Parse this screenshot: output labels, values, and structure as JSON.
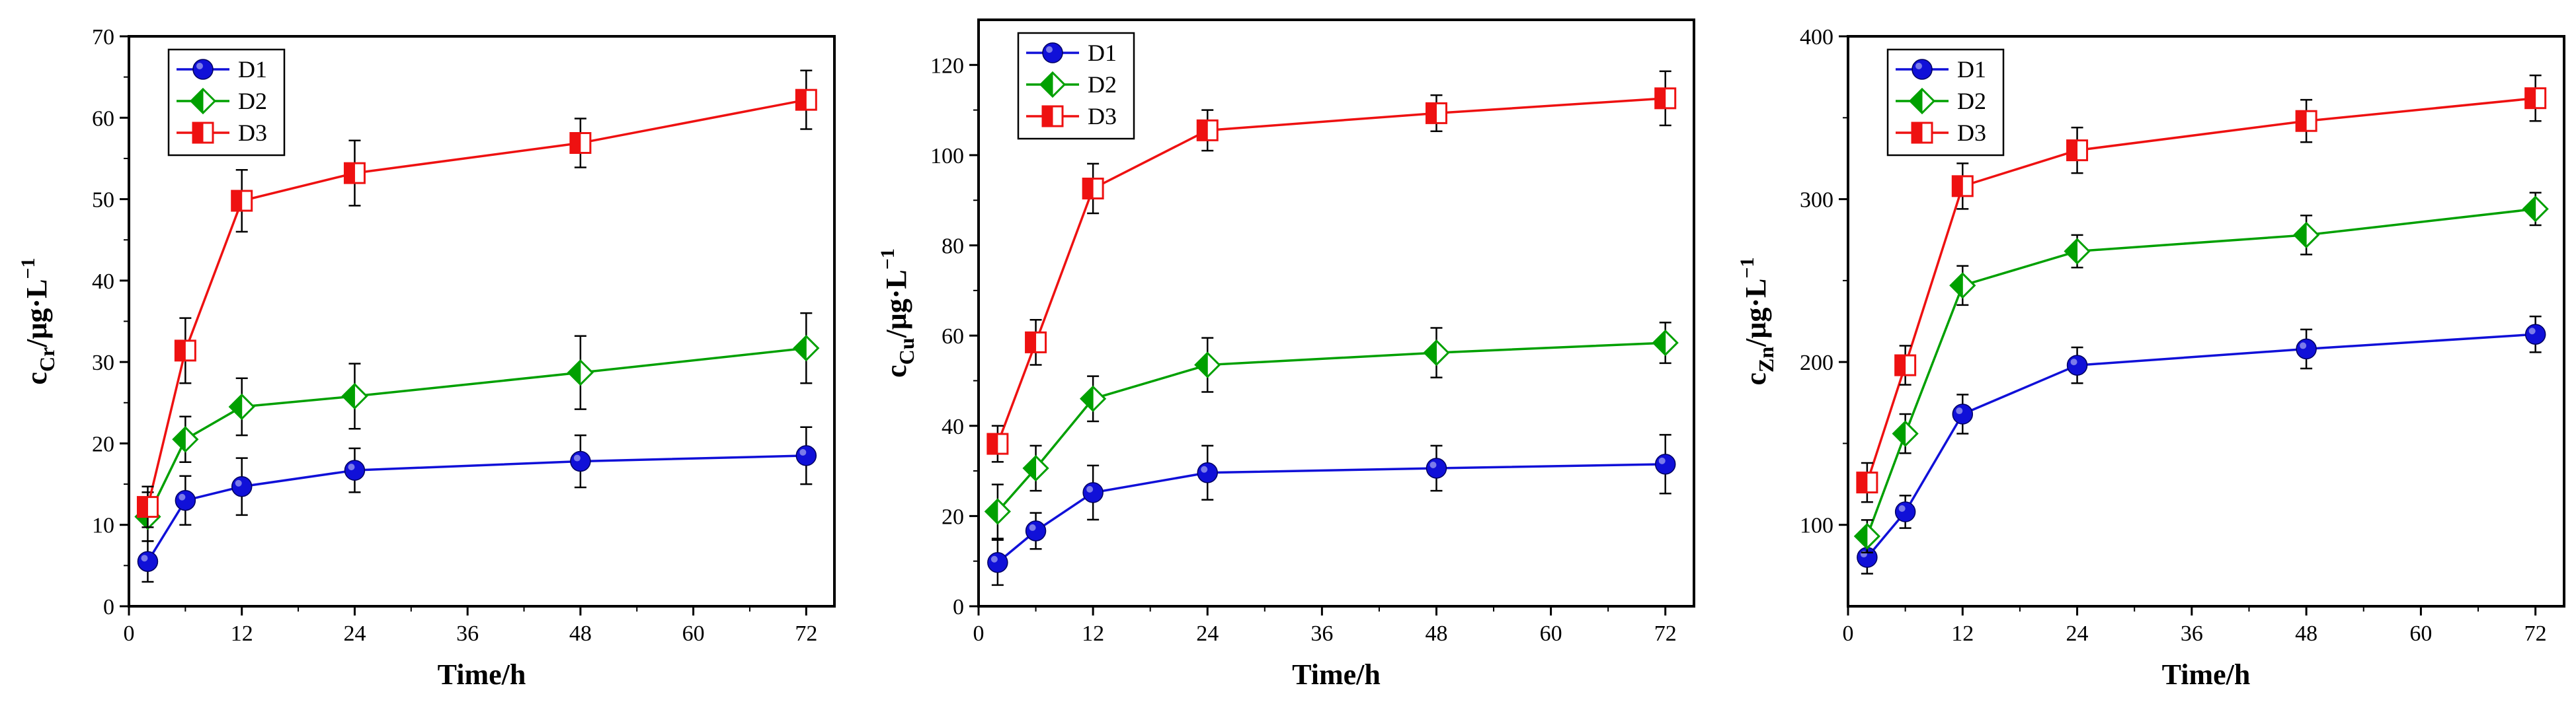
{
  "figure": {
    "description_free": true
  },
  "chart_data": [
    {
      "type": "line",
      "title": "",
      "xlabel": "Time/h",
      "ylabel": {
        "main": "c",
        "sub": "Cr",
        "unit": "/μg·L",
        "sup": "−1"
      },
      "x": [
        2,
        6,
        12,
        24,
        48,
        72
      ],
      "xlim": [
        0,
        75
      ],
      "xticks": [
        0,
        12,
        24,
        36,
        48,
        60,
        72
      ],
      "ylim": [
        0,
        70
      ],
      "yticks": [
        0,
        10,
        20,
        30,
        40,
        50,
        60,
        70
      ],
      "grid": false,
      "legend": "top-left",
      "series": [
        {
          "name": "D1",
          "color": "#1010d8",
          "marker": "circle",
          "values": [
            5.5,
            13,
            14.7,
            16.7,
            17.8,
            18.5
          ],
          "err": [
            2.5,
            3,
            3.5,
            2.7,
            3.2,
            3.5
          ]
        },
        {
          "name": "D2",
          "color": "#00a000",
          "marker": "diamond",
          "values": [
            11,
            20.5,
            24.5,
            25.8,
            28.7,
            31.7
          ],
          "err": [
            3,
            2.8,
            3.5,
            4,
            4.5,
            4.3
          ]
        },
        {
          "name": "D3",
          "color": "#ee1111",
          "marker": "square",
          "values": [
            12.2,
            31.4,
            49.8,
            53.2,
            56.9,
            62.2
          ],
          "err": [
            2.5,
            4,
            3.8,
            4,
            3,
            3.6
          ]
        }
      ]
    },
    {
      "type": "line",
      "title": "",
      "xlabel": "Time/h",
      "ylabel": {
        "main": "c",
        "sub": "Cu",
        "unit": "/μg·L",
        "sup": "−1"
      },
      "x": [
        2,
        6,
        12,
        24,
        48,
        72
      ],
      "xlim": [
        0,
        75
      ],
      "xticks": [
        0,
        12,
        24,
        36,
        48,
        60,
        72
      ],
      "ylim": [
        0,
        130
      ],
      "yticks": [
        0,
        20,
        40,
        60,
        80,
        100,
        120
      ],
      "grid": false,
      "legend": "top-left",
      "series": [
        {
          "name": "D1",
          "color": "#1010d8",
          "marker": "circle",
          "values": [
            9.7,
            16.7,
            25.2,
            29.6,
            30.6,
            31.5
          ],
          "err": [
            5,
            4,
            6,
            6,
            5,
            6.5
          ]
        },
        {
          "name": "D2",
          "color": "#00a000",
          "marker": "diamond",
          "values": [
            21,
            30.6,
            46,
            53.5,
            56.2,
            58.4
          ],
          "err": [
            6,
            5,
            5,
            6,
            5.5,
            4.5
          ]
        },
        {
          "name": "D3",
          "color": "#ee1111",
          "marker": "square",
          "values": [
            36,
            58.5,
            92.6,
            105.5,
            109.3,
            112.6
          ],
          "err": [
            4,
            5,
            5.5,
            4.5,
            4,
            6
          ]
        }
      ]
    },
    {
      "type": "line",
      "title": "",
      "xlabel": "Time/h",
      "ylabel": {
        "main": "c",
        "sub": "Zn",
        "unit": "/μg·L",
        "sup": "−1"
      },
      "x": [
        2,
        6,
        12,
        24,
        48,
        72
      ],
      "xlim": [
        0,
        75
      ],
      "xticks": [
        0,
        12,
        24,
        36,
        48,
        60,
        72
      ],
      "ylim": [
        50,
        400
      ],
      "yticks": [
        100,
        200,
        300,
        400
      ],
      "grid": false,
      "legend": "top-left",
      "series": [
        {
          "name": "D1",
          "color": "#1010d8",
          "marker": "circle",
          "values": [
            80,
            108,
            168,
            198,
            208,
            217
          ],
          "err": [
            10,
            10,
            12,
            11,
            12,
            11
          ]
        },
        {
          "name": "D2",
          "color": "#00a000",
          "marker": "diamond",
          "values": [
            93,
            156,
            247,
            268,
            278,
            294
          ],
          "err": [
            10,
            12,
            12,
            10,
            12,
            10
          ]
        },
        {
          "name": "D3",
          "color": "#ee1111",
          "marker": "square",
          "values": [
            126,
            198,
            308,
            330,
            348,
            362
          ],
          "err": [
            12,
            12,
            14,
            14,
            13,
            14
          ]
        }
      ]
    }
  ]
}
